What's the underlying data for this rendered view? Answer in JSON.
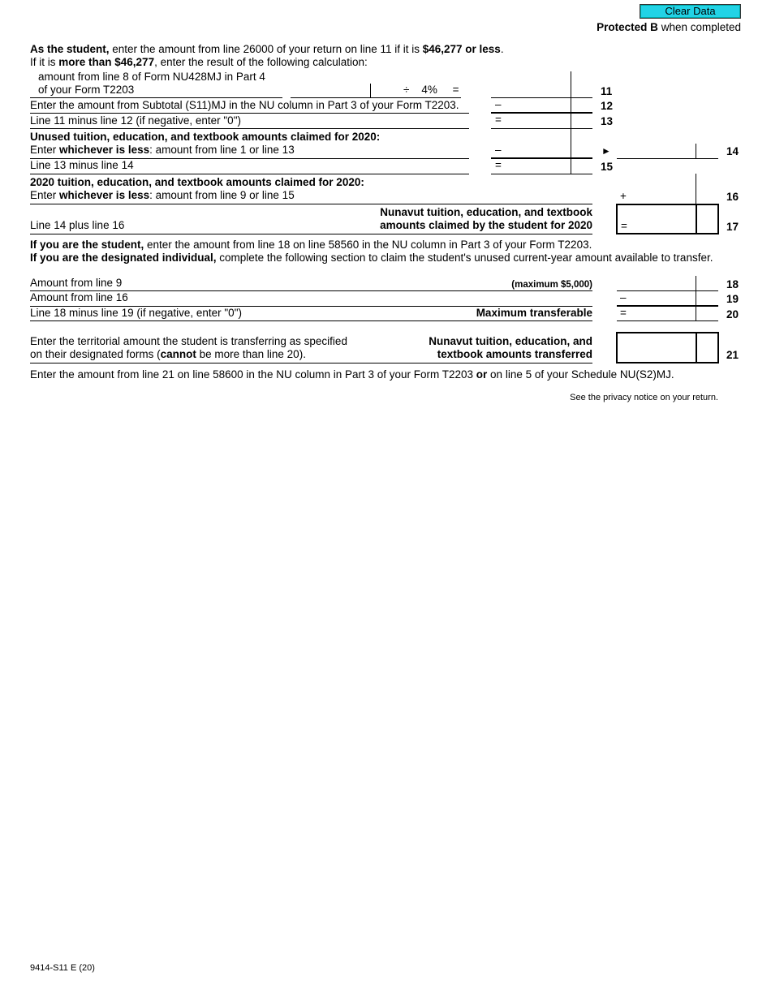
{
  "header": {
    "clear_button": "Clear Data",
    "protected_bold": "Protected B",
    "protected_rest": " when completed"
  },
  "intro": {
    "l1_b1": "As the student,",
    "l1_t1": " enter the amount from line 26000 of your return on line 11 if it is ",
    "l1_b2": "$46,277 or less",
    "l1_t2": ".",
    "l2_t1": "If it is ",
    "l2_b1": "more than $46,277",
    "l2_t2": ", enter the result of the following calculation:"
  },
  "line11": {
    "label1": "amount from line 8 of Form NU428MJ in Part 4",
    "label2": "of your Form T2203",
    "operator": "÷    4%     =",
    "number": "11"
  },
  "line12": {
    "label": "Enter the amount from Subtotal (S11)MJ in the NU column in Part 3 of your Form T2203.",
    "operator": "–",
    "number": "12"
  },
  "line13": {
    "label": "Line 11 minus line 12 (if negative, enter \"0\")",
    "operator": "=",
    "number": "13"
  },
  "line14": {
    "heading": "Unused tuition, education, and textbook amounts claimed for 2020:",
    "t1": "Enter ",
    "b1": "whichever is less",
    "t2": ": amount from line 1 or line 13",
    "operator": "–",
    "arrow": "►",
    "number": "14"
  },
  "line15": {
    "label": "Line 13 minus line 14",
    "operator": "=",
    "number": "15"
  },
  "line16": {
    "heading": "2020 tuition, education, and textbook amounts claimed for 2020:",
    "t1": "Enter ",
    "b1": "whichever is less",
    "t2": ": amount from line 9 or line 15",
    "operator": "+",
    "number": "16"
  },
  "line17": {
    "label": "Line 14 plus line 16",
    "title1": "Nunavut tuition, education, and textbook",
    "title2": "amounts claimed by the student for 2020",
    "operator": "=",
    "number": "17"
  },
  "instructions": {
    "p1_b": "If you are the student,",
    "p1_t": " enter the amount from line 18 on line 58560 in the NU column in Part 3 of your Form T2203.",
    "p2_b": "If you are the designated individual,",
    "p2_t": " complete the following section to claim the student's unused current-year amount available to transfer."
  },
  "line18": {
    "label": "Amount from line 9",
    "note": "(maximum $5,000)",
    "number": "18"
  },
  "line19": {
    "label": "Amount from line 16",
    "operator": "–",
    "number": "19"
  },
  "line20": {
    "label": "Line 18 minus line 19 (if negative, enter \"0\")",
    "title": "Maximum transferable",
    "operator": "=",
    "number": "20"
  },
  "line21": {
    "label1": "Enter the territorial amount the student is transferring as specified",
    "l2_t1": "on their designated forms (",
    "l2_b": "cannot",
    "l2_t2": " be more than line 20).",
    "title1": "Nunavut tuition, education, and",
    "title2": "textbook amounts transferred",
    "number": "21"
  },
  "final": {
    "t1": "Enter the amount from line 21 on line 58600 in the NU column in Part 3 of your Form T2203 ",
    "b": "or",
    "t2": " on line 5 of your Schedule NU(S2)MJ."
  },
  "privacy": "See the privacy notice on your return.",
  "footer": "9414-S11 E (20)"
}
